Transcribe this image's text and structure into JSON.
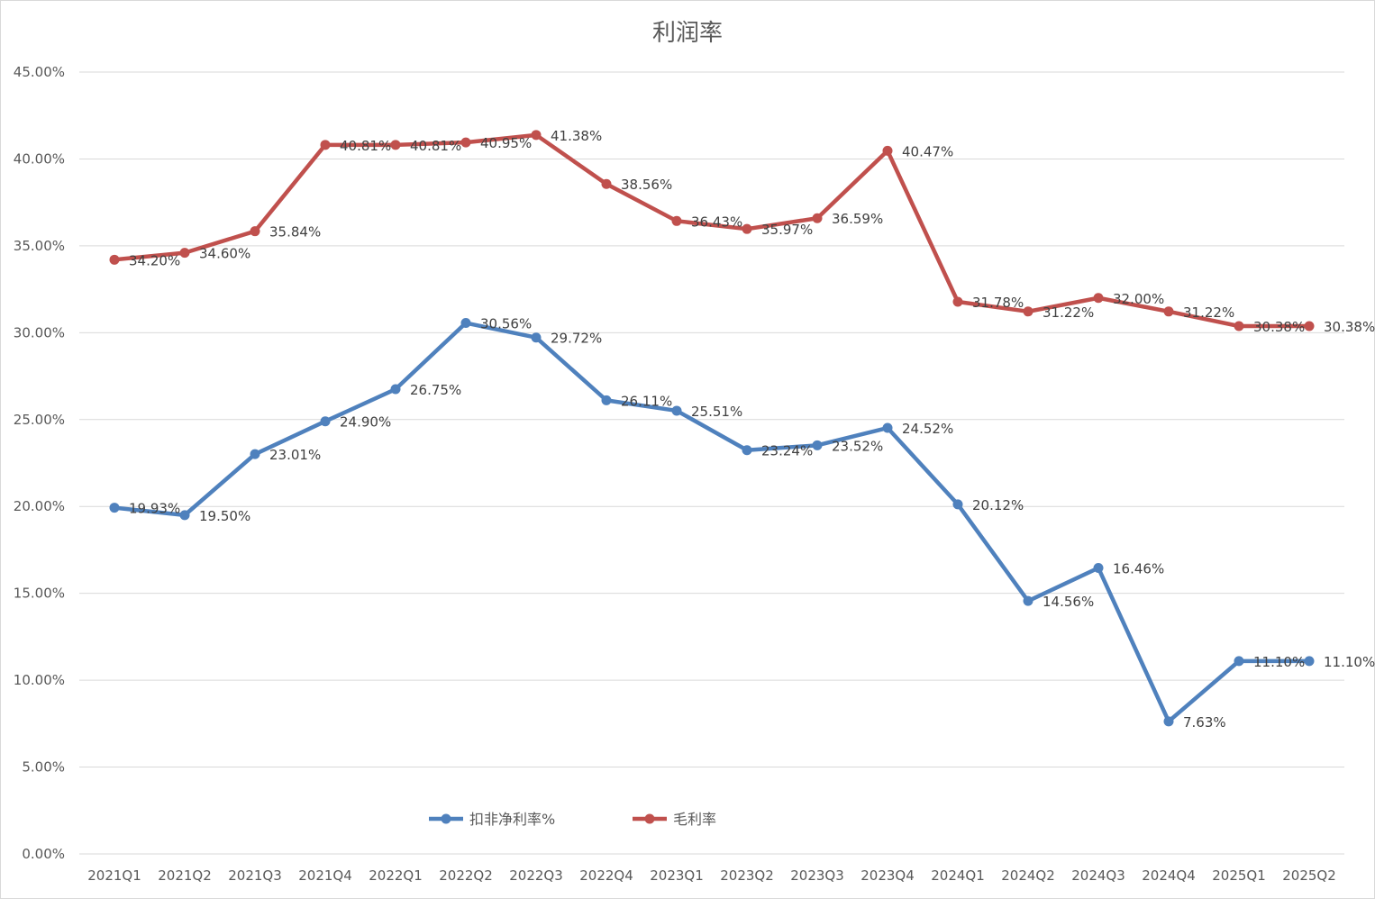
{
  "chart_data": {
    "type": "line",
    "title": "利润率",
    "xlabel": "",
    "ylabel": "",
    "categories": [
      "2021Q1",
      "2021Q2",
      "2021Q3",
      "2021Q4",
      "2022Q1",
      "2022Q2",
      "2022Q3",
      "2022Q4",
      "2023Q1",
      "2023Q2",
      "2023Q3",
      "2023Q4",
      "2024Q1",
      "2024Q2",
      "2024Q3",
      "2024Q4",
      "2025Q1",
      "2025Q2"
    ],
    "ylim": [
      0,
      45
    ],
    "yticks": [
      0,
      5,
      10,
      15,
      20,
      25,
      30,
      35,
      40,
      45
    ],
    "ytick_labels": [
      "0.00%",
      "5.00%",
      "10.00%",
      "15.00%",
      "20.00%",
      "25.00%",
      "30.00%",
      "35.00%",
      "40.00%",
      "45.00%"
    ],
    "grid": true,
    "legend_position": "bottom-inside",
    "series": [
      {
        "name": "扣非净利率%",
        "color": "#4f81bd",
        "values": [
          19.93,
          19.5,
          23.01,
          24.9,
          26.75,
          30.56,
          29.72,
          26.11,
          25.51,
          23.24,
          23.52,
          24.52,
          20.12,
          14.56,
          16.46,
          7.63,
          11.1,
          11.1
        ],
        "labels": [
          "19.93%",
          "19.50%",
          "23.01%",
          "24.90%",
          "26.75%",
          "30.56%",
          "29.72%",
          "26.11%",
          "25.51%",
          "23.24%",
          "23.52%",
          "24.52%",
          "20.12%",
          "14.56%",
          "16.46%",
          "7.63%",
          "11.10%",
          "11.10%"
        ]
      },
      {
        "name": "毛利率",
        "color": "#c0504d",
        "values": [
          34.2,
          34.6,
          35.84,
          40.81,
          40.81,
          40.95,
          41.38,
          38.56,
          36.43,
          35.97,
          36.59,
          40.47,
          31.78,
          31.22,
          32.0,
          31.22,
          30.38,
          30.38
        ],
        "labels": [
          "34.20%",
          "34.60%",
          "35.84%",
          "40.81%",
          "40.81%",
          "40.95%",
          "41.38%",
          "38.56%",
          "36.43%",
          "35.97%",
          "36.59%",
          "40.47%",
          "31.78%",
          "31.22%",
          "32.00%",
          "31.22%",
          "30.38%",
          "30.38%"
        ]
      }
    ]
  }
}
